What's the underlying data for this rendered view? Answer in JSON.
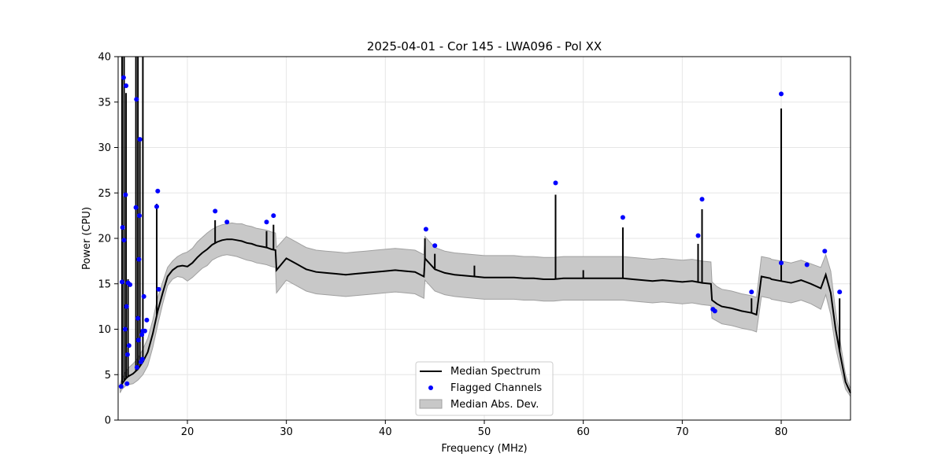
{
  "chart_data": {
    "type": "line",
    "title": "2025-04-01 - Cor 145 - LWA096 - Pol XX",
    "xlabel": "Frequency (MHz)",
    "ylabel": "Power (CPU)",
    "xlim": [
      13.0,
      87.0
    ],
    "ylim": [
      0,
      40
    ],
    "xticks": [
      20,
      30,
      40,
      50,
      60,
      70,
      80
    ],
    "yticks": [
      0,
      5,
      10,
      15,
      20,
      25,
      30,
      35,
      40
    ],
    "grid": true,
    "legend_position": "lower center",
    "legend": [
      "Median Spectrum",
      "Flagged Channels",
      "Median Abs. Dev."
    ],
    "series": [
      {
        "name": "Median Spectrum",
        "color": "#000000",
        "x": [
          13.2,
          13.4,
          13.6,
          13.8,
          14.0,
          14.5,
          15.0,
          15.5,
          16.0,
          16.5,
          17.0,
          17.5,
          18.0,
          18.5,
          19.0,
          19.5,
          20.0,
          20.5,
          21.0,
          21.5,
          22.0,
          22.5,
          23.0,
          23.5,
          24.0,
          24.5,
          25.0,
          25.5,
          26.0,
          26.5,
          27.0,
          27.5,
          28.0,
          28.5,
          28.9,
          29.0,
          30.0,
          31.0,
          32.0,
          33.0,
          34.0,
          35.0,
          36.0,
          37.0,
          38.0,
          39.0,
          40.0,
          41.0,
          42.0,
          43.0,
          43.9,
          44.0,
          45.0,
          46.0,
          47.0,
          48.0,
          49.0,
          50.0,
          51.0,
          52.0,
          53.0,
          54.0,
          55.0,
          56.0,
          57.0,
          58.0,
          59.0,
          60.0,
          61.0,
          62.0,
          63.0,
          64.0,
          65.0,
          66.0,
          67.0,
          68.0,
          69.0,
          70.0,
          71.0,
          72.0,
          72.9,
          73.0,
          73.5,
          74.0,
          75.0,
          76.0,
          77.0,
          77.5,
          78.0,
          78.9,
          79.0,
          80.0,
          81.0,
          82.0,
          83.0,
          84.0,
          84.5,
          85.0,
          85.5,
          86.0,
          86.5,
          87.0
        ],
        "values": [
          3.5,
          4.0,
          4.3,
          4.6,
          4.8,
          5.1,
          5.6,
          6.4,
          7.5,
          9.5,
          12.0,
          14.0,
          15.8,
          16.5,
          16.9,
          17.0,
          16.9,
          17.3,
          17.9,
          18.4,
          18.8,
          19.3,
          19.6,
          19.8,
          19.9,
          19.9,
          19.8,
          19.7,
          19.5,
          19.4,
          19.2,
          19.1,
          19.0,
          18.8,
          18.7,
          16.5,
          17.8,
          17.2,
          16.6,
          16.3,
          16.2,
          16.1,
          16.0,
          16.1,
          16.2,
          16.3,
          16.4,
          16.5,
          16.4,
          16.3,
          15.8,
          17.8,
          16.6,
          16.2,
          16.0,
          15.9,
          15.8,
          15.7,
          15.7,
          15.7,
          15.7,
          15.6,
          15.6,
          15.5,
          15.5,
          15.6,
          15.6,
          15.6,
          15.6,
          15.6,
          15.6,
          15.6,
          15.5,
          15.4,
          15.3,
          15.4,
          15.3,
          15.2,
          15.3,
          15.1,
          15.0,
          13.2,
          12.8,
          12.5,
          12.3,
          12.0,
          11.8,
          11.6,
          15.8,
          15.6,
          15.5,
          15.3,
          15.1,
          15.4,
          15.0,
          14.5,
          16.0,
          14.0,
          10.0,
          7.0,
          4.2,
          3.0
        ]
      },
      {
        "name": "Flagged Channels",
        "color": "#0000ff",
        "points": [
          [
            13.3,
            3.7
          ],
          [
            13.4,
            15.2
          ],
          [
            13.45,
            21.2
          ],
          [
            13.55,
            37.7
          ],
          [
            13.6,
            19.8
          ],
          [
            13.7,
            10.0
          ],
          [
            13.75,
            24.8
          ],
          [
            13.8,
            36.8
          ],
          [
            13.85,
            12.5
          ],
          [
            13.9,
            4.0
          ],
          [
            13.95,
            7.2
          ],
          [
            14.0,
            15.1
          ],
          [
            14.1,
            8.2
          ],
          [
            14.2,
            14.9
          ],
          [
            14.8,
            23.4
          ],
          [
            14.85,
            35.3
          ],
          [
            14.9,
            5.8
          ],
          [
            15.0,
            11.2
          ],
          [
            15.05,
            8.8
          ],
          [
            15.1,
            17.7
          ],
          [
            15.15,
            22.5
          ],
          [
            15.2,
            30.9
          ],
          [
            15.3,
            6.4
          ],
          [
            15.4,
            9.4
          ],
          [
            15.45,
            6.7
          ],
          [
            15.5,
            9.8
          ],
          [
            15.6,
            13.6
          ],
          [
            15.7,
            9.8
          ],
          [
            15.9,
            11.0
          ],
          [
            16.9,
            23.5
          ],
          [
            17.0,
            25.2
          ],
          [
            17.1,
            14.4
          ],
          [
            22.8,
            23.0
          ],
          [
            24.0,
            21.8
          ],
          [
            28.0,
            21.8
          ],
          [
            28.7,
            22.5
          ],
          [
            44.1,
            21.0
          ],
          [
            45.0,
            19.2
          ],
          [
            57.2,
            26.1
          ],
          [
            64.0,
            22.3
          ],
          [
            71.6,
            20.3
          ],
          [
            72.0,
            24.3
          ],
          [
            73.1,
            12.2
          ],
          [
            73.3,
            12.0
          ],
          [
            77.0,
            14.1
          ],
          [
            80.0,
            35.9
          ],
          [
            80.0,
            17.3
          ],
          [
            82.6,
            17.1
          ],
          [
            84.4,
            18.6
          ],
          [
            85.9,
            14.1
          ]
        ]
      },
      {
        "name": "Median Abs. Dev.",
        "color": "#c8c8c8",
        "upper": [
          4.0,
          4.6,
          5.0,
          5.4,
          5.7,
          6.2,
          6.8,
          7.8,
          9.0,
          11.0,
          13.5,
          15.2,
          16.8,
          17.5,
          18.0,
          18.3,
          18.5,
          18.9,
          19.6,
          20.1,
          20.6,
          21.0,
          21.3,
          21.5,
          21.6,
          21.7,
          21.6,
          21.6,
          21.4,
          21.3,
          21.1,
          21.0,
          20.9,
          20.7,
          20.6,
          19.0,
          20.2,
          19.6,
          19.0,
          18.7,
          18.6,
          18.5,
          18.4,
          18.5,
          18.6,
          18.7,
          18.8,
          18.9,
          18.8,
          18.7,
          18.2,
          20.2,
          19.0,
          18.6,
          18.4,
          18.3,
          18.2,
          18.1,
          18.1,
          18.1,
          18.1,
          18.0,
          18.0,
          17.9,
          17.9,
          18.0,
          18.0,
          18.0,
          18.0,
          18.0,
          18.0,
          18.0,
          17.9,
          17.8,
          17.7,
          17.8,
          17.7,
          17.6,
          17.7,
          17.5,
          17.4,
          15.2,
          14.7,
          14.4,
          14.2,
          13.9,
          13.7,
          13.5,
          18.0,
          17.8,
          17.7,
          17.5,
          17.3,
          17.6,
          17.2,
          16.8,
          18.2,
          16.4,
          12.0,
          8.4,
          5.0,
          3.4
        ],
        "lower": [
          3.0,
          3.4,
          3.6,
          3.8,
          3.9,
          4.0,
          4.4,
          5.0,
          6.0,
          8.0,
          10.5,
          12.8,
          14.8,
          15.5,
          15.8,
          15.7,
          15.3,
          15.7,
          16.2,
          16.7,
          17.0,
          17.6,
          17.9,
          18.1,
          18.2,
          18.1,
          18.0,
          17.8,
          17.6,
          17.5,
          17.3,
          17.2,
          17.1,
          16.9,
          16.8,
          14.0,
          15.4,
          14.8,
          14.2,
          13.9,
          13.8,
          13.7,
          13.6,
          13.7,
          13.8,
          13.9,
          14.0,
          14.1,
          14.0,
          13.9,
          13.4,
          15.4,
          14.2,
          13.8,
          13.6,
          13.5,
          13.4,
          13.3,
          13.3,
          13.3,
          13.3,
          13.2,
          13.2,
          13.1,
          13.1,
          13.2,
          13.2,
          13.2,
          13.2,
          13.2,
          13.2,
          13.2,
          13.1,
          13.0,
          12.9,
          13.0,
          12.9,
          12.8,
          12.9,
          12.7,
          12.6,
          11.2,
          10.9,
          10.6,
          10.4,
          10.1,
          9.9,
          9.7,
          13.6,
          13.4,
          13.3,
          13.1,
          12.9,
          13.2,
          12.8,
          12.2,
          13.8,
          11.6,
          8.0,
          5.6,
          3.4,
          2.6
        ]
      }
    ],
    "spikes": [
      [
        13.4,
        40.0
      ],
      [
        13.6,
        40.0
      ],
      [
        13.8,
        36.0
      ],
      [
        14.0,
        15.5
      ],
      [
        14.8,
        40.0
      ],
      [
        15.0,
        40.0
      ],
      [
        15.2,
        31.0
      ],
      [
        15.5,
        40.0
      ],
      [
        16.9,
        23.8
      ],
      [
        22.8,
        22.0
      ],
      [
        28.0,
        20.8
      ],
      [
        28.7,
        21.5
      ],
      [
        44.0,
        20.0
      ],
      [
        45.0,
        18.3
      ],
      [
        49.0,
        17.0
      ],
      [
        57.2,
        24.8
      ],
      [
        60.0,
        16.5
      ],
      [
        64.0,
        21.2
      ],
      [
        71.6,
        19.4
      ],
      [
        72.0,
        23.2
      ],
      [
        77.0,
        13.4
      ],
      [
        80.0,
        34.3
      ],
      [
        85.9,
        13.4
      ]
    ]
  }
}
